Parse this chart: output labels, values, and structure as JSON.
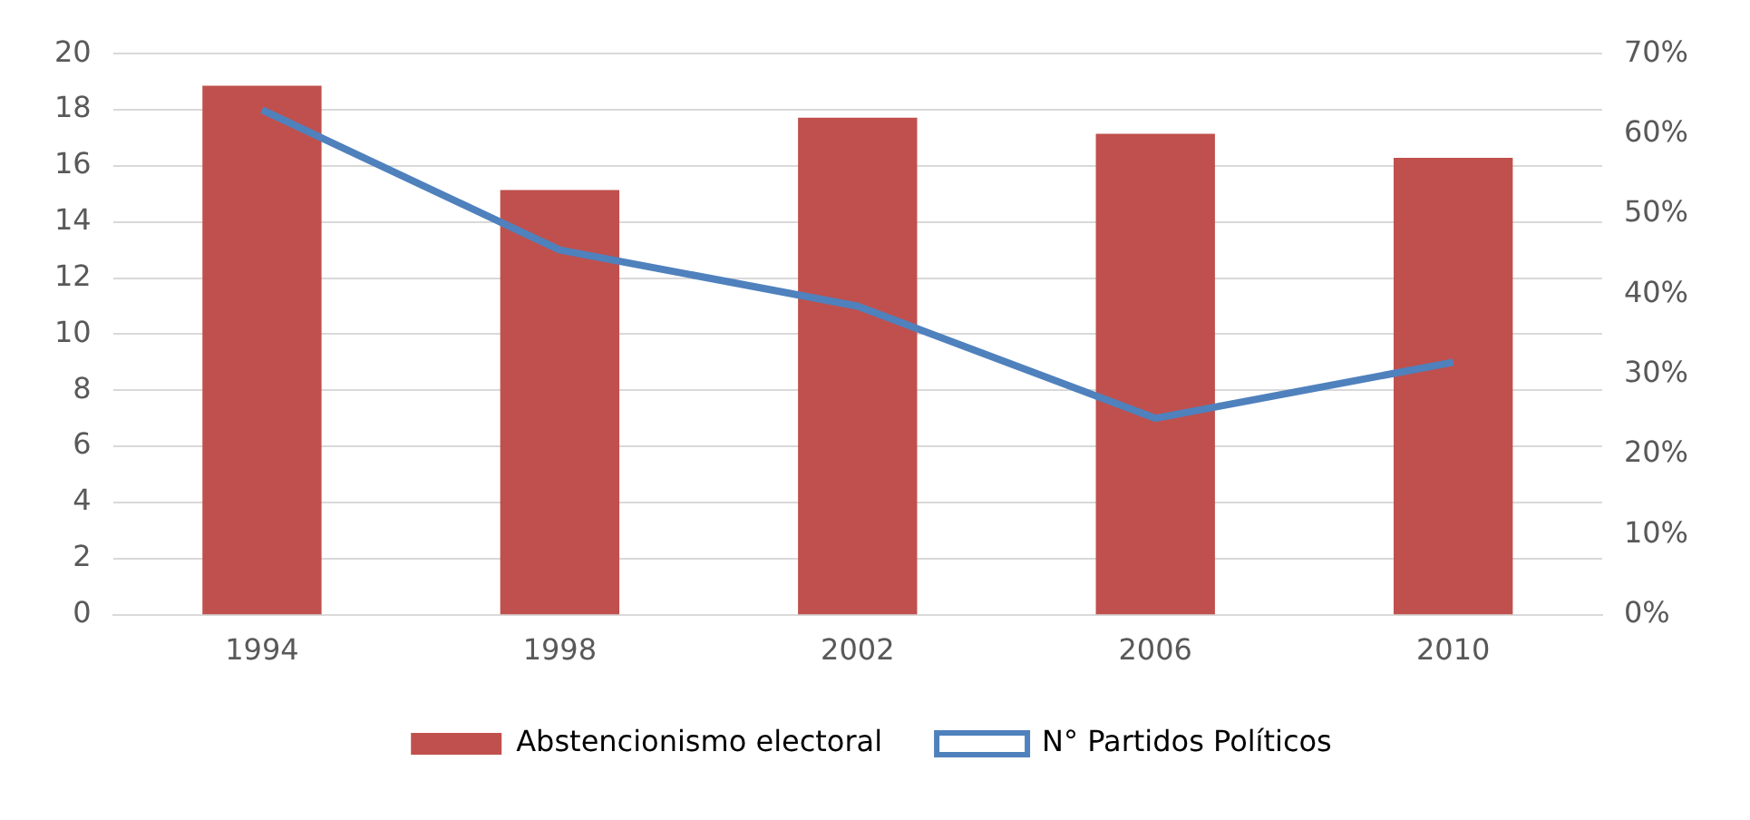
{
  "chart_data": {
    "type": "bar",
    "categories": [
      "1994",
      "1998",
      "2002",
      "2006",
      "2010"
    ],
    "series": [
      {
        "name": "Abstencionismo electoral",
        "axis": "y2",
        "color": "#c0504d",
        "values": [
          66,
          53,
          62,
          60,
          57
        ]
      },
      {
        "name": "N° Partidos Políticos",
        "type": "line",
        "color": "#4f81bd",
        "values": [
          18,
          13,
          11,
          7,
          9
        ]
      }
    ],
    "ylim": [
      0,
      20
    ],
    "yticks": [
      0,
      2,
      4,
      6,
      8,
      10,
      12,
      14,
      16,
      18,
      20
    ],
    "y2lim": [
      0,
      70
    ],
    "y2ticks": [
      {
        "value": 0,
        "label": "0%"
      },
      {
        "value": 10,
        "label": "10%"
      },
      {
        "value": 20,
        "label": "20%"
      },
      {
        "value": 30,
        "label": "30%"
      },
      {
        "value": 40,
        "label": "40%"
      },
      {
        "value": 50,
        "label": "50%"
      },
      {
        "value": 60,
        "label": "60%"
      },
      {
        "value": 70,
        "label": "70%"
      }
    ],
    "grid": "y",
    "legend": "bottom",
    "marker": "none",
    "line_style": "solid"
  }
}
